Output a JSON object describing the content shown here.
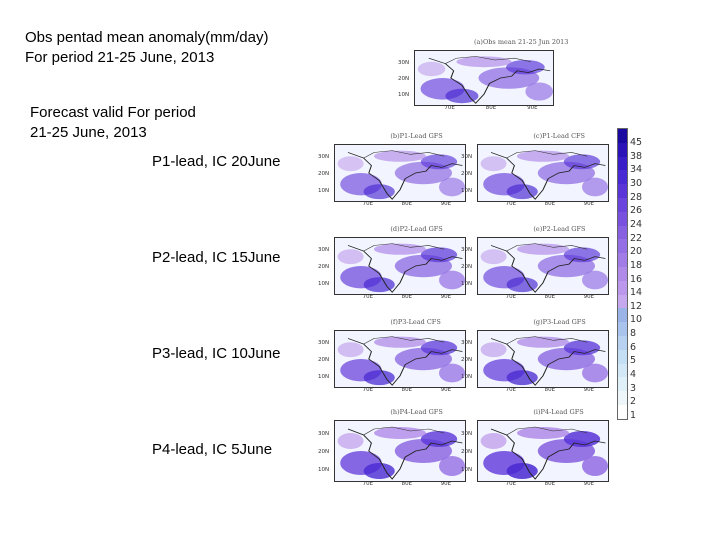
{
  "slide": {
    "title_line1": "Obs pentad mean anomaly(mm/day)",
    "title_line2": "For period 21-25 June, 2013",
    "forecast_line1": "Forecast valid For period",
    "forecast_line2": "21-25 June, 2013",
    "leads": [
      "P1-lead, IC 20June",
      "P2-lead, IC 15June",
      "P3-lead, IC 10June",
      "P4-lead, IC 5June"
    ]
  },
  "panels": [
    {
      "title": "(a)Obs mean 21-25 Jun 2013",
      "lat_labels": [
        "30N",
        "20N",
        "10N"
      ],
      "lon_labels": [
        "70E",
        "80E",
        "90E"
      ],
      "intensity": 0.55
    },
    {
      "title": "(b)P1-Lead GFS",
      "lat_labels": [
        "30N",
        "20N",
        "10N"
      ],
      "lon_labels": [
        "70E",
        "80E",
        "90E"
      ],
      "intensity": 0.5
    },
    {
      "title": "(c)P1-Lead CFS",
      "lat_labels": [
        "30N",
        "20N",
        "10N"
      ],
      "lon_labels": [
        "70E",
        "80E",
        "90E"
      ],
      "intensity": 0.55
    },
    {
      "title": "(d)P2-Lead GFS",
      "lat_labels": [
        "30N",
        "20N",
        "10N"
      ],
      "lon_labels": [
        "70E",
        "80E",
        "90E"
      ],
      "intensity": 0.6
    },
    {
      "title": "(e)P2-Lead GFS",
      "lat_labels": [
        "30N",
        "20N",
        "10N"
      ],
      "lon_labels": [
        "70E",
        "80E",
        "90E"
      ],
      "intensity": 0.55
    },
    {
      "title": "(f)P3-Lead CFS",
      "lat_labels": [
        "30N",
        "20N",
        "10N"
      ],
      "lon_labels": [
        "70E",
        "80E",
        "90E"
      ],
      "intensity": 0.65
    },
    {
      "title": "(g)P3-Lead GFS",
      "lat_labels": [
        "30N",
        "20N",
        "10N"
      ],
      "lon_labels": [
        "70E",
        "80E",
        "90E"
      ],
      "intensity": 0.7
    },
    {
      "title": "(h)P4-Lead GFS",
      "lat_labels": [
        "30N",
        "20N",
        "10N"
      ],
      "lon_labels": [
        "70E",
        "80E",
        "90E"
      ],
      "intensity": 0.75
    },
    {
      "title": "(i)P4-Lead GFS",
      "lat_labels": [
        "30N",
        "20N",
        "10N"
      ],
      "lon_labels": [
        "70E",
        "80E",
        "90E"
      ],
      "intensity": 0.85
    }
  ],
  "colorbar": {
    "labels": [
      "45",
      "38",
      "34",
      "30",
      "28",
      "26",
      "24",
      "22",
      "20",
      "18",
      "16",
      "14",
      "12",
      "10",
      "8",
      "6",
      "5",
      "4",
      "3",
      "2",
      "1"
    ],
    "colors": [
      "#1a0aa0",
      "#2a14b8",
      "#3a1fc8",
      "#4a2ad2",
      "#5a36d8",
      "#6a44dc",
      "#7852de",
      "#8660e0",
      "#946ee4",
      "#a27ce6",
      "#b08ae8",
      "#bb98ec",
      "#c6a8ee",
      "#9ab4e8",
      "#a8c4ec",
      "#b6d2f0",
      "#c4def4",
      "#d2e8f6",
      "#e0f0f8",
      "#eef6fa",
      "#ffffff"
    ]
  }
}
